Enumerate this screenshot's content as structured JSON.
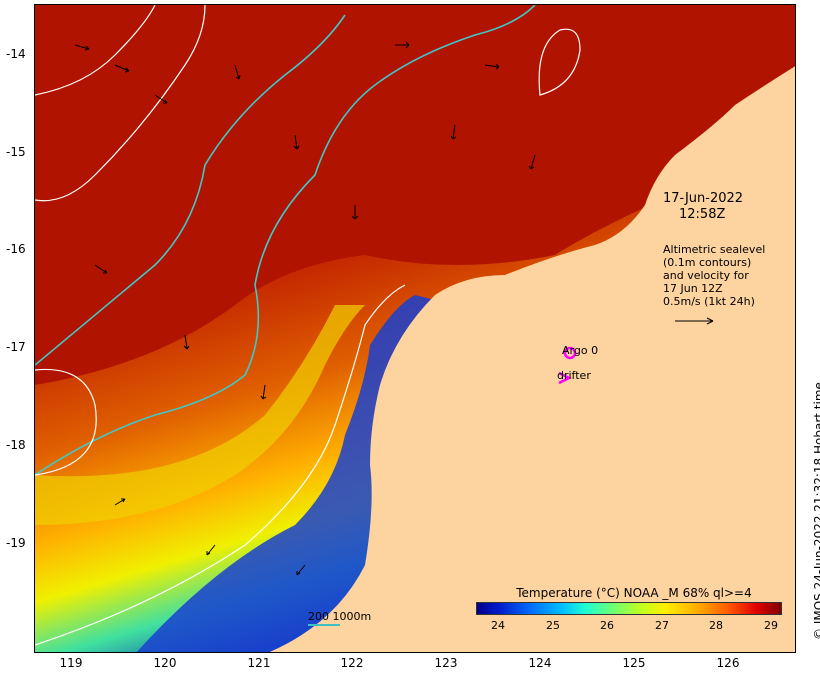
{
  "map": {
    "y_ticks": [
      "-14",
      "-15",
      "-16",
      "-17",
      "-18",
      "-19"
    ],
    "x_ticks": [
      "119",
      "120",
      "121",
      "122",
      "123",
      "124",
      "125",
      "126"
    ],
    "colors": {
      "land": "#fdd3a0",
      "sst_warm": "#b01200",
      "contour": "#ffffff",
      "bathymetry": "#40c8c8",
      "markers": "#ff00ff"
    }
  },
  "timestamp": {
    "date": "17-Jun-2022",
    "time": "12:58Z"
  },
  "altimetry_note": {
    "line1": "Altimetric sealevel",
    "line2": "(0.1m contours)",
    "line3": "and velocity for",
    "line4": "17 Jun 12Z",
    "line5": "0.5m/s (1kt 24h)"
  },
  "legend": {
    "argo": "Argo 0",
    "drifter": "drifter"
  },
  "colorbar": {
    "title": "Temperature (°C) NOAA _M 68% ql>=4",
    "ticks": [
      "24",
      "25",
      "26",
      "27",
      "28",
      "29"
    ]
  },
  "scale": {
    "label": "200  1000m"
  },
  "copyright": "© IMOS 24-Jun-2022 21:32:18 Hobart time"
}
